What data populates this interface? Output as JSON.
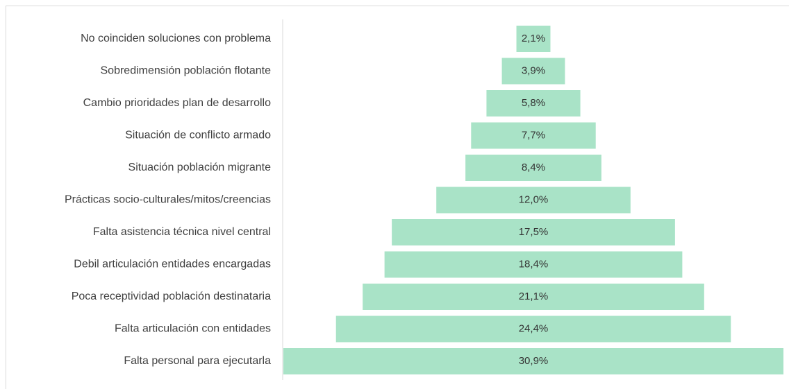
{
  "chart_data": {
    "type": "funnel",
    "categories": [
      "No coinciden soluciones con problema",
      "Sobredimensión población flotante",
      "Cambio prioridades plan de desarrollo",
      "Situación de conflicto armado",
      "Situación población migrante",
      "Prácticas socio-culturales/mitos/creencias",
      "Falta asistencia técnica nivel central",
      "Debil articulación entidades encargadas",
      "Poca receptividad población destinataria",
      "Falta articulación con entidades",
      "Falta personal para ejecutarla"
    ],
    "values": [
      2.1,
      3.9,
      5.8,
      7.7,
      8.4,
      12.0,
      17.5,
      18.4,
      21.1,
      24.4,
      30.9
    ],
    "value_labels": [
      "2,1%",
      "3,9%",
      "5,8%",
      "7,7%",
      "8,4%",
      "12,0%",
      "17,5%",
      "18,4%",
      "21,1%",
      "24,4%",
      "30,9%"
    ],
    "color": "#a9e3c7"
  }
}
